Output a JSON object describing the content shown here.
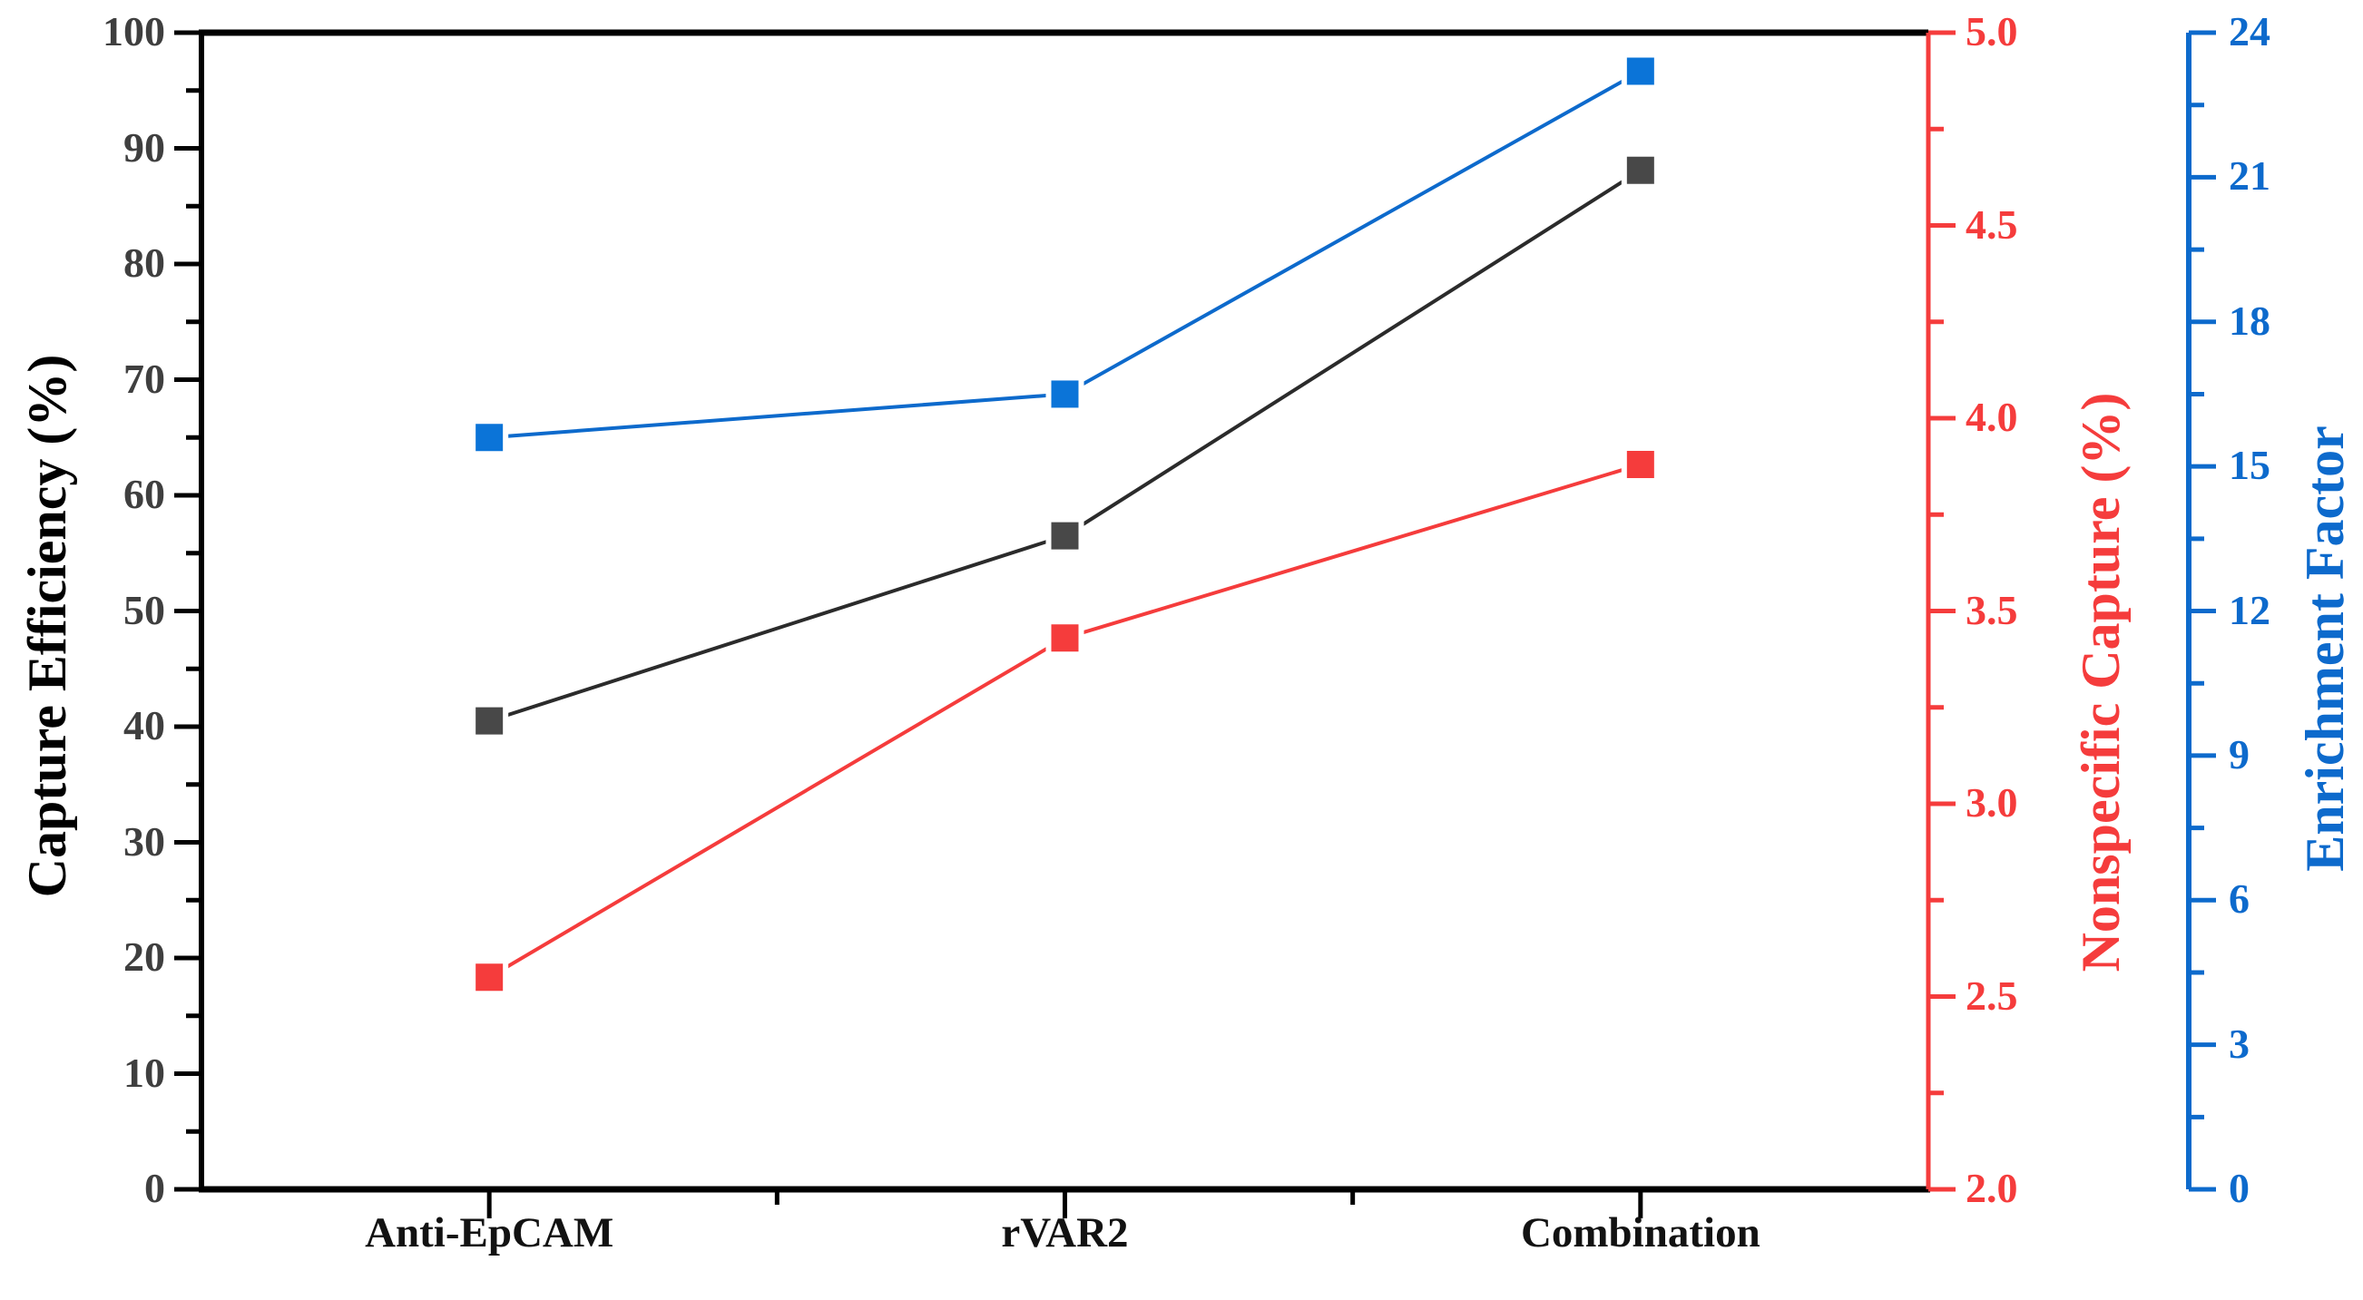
{
  "chart_data": {
    "type": "line",
    "categories": [
      "Anti-EpCAM",
      "rVAR2",
      "Combination"
    ],
    "series": [
      {
        "name": "Capture Efficiency",
        "axis": "left",
        "marker": "square",
        "line_color": "#2b2b2b",
        "marker_color": "#484848",
        "values": [
          40.5,
          56.5,
          88.1
        ]
      },
      {
        "name": "Nonspecific Capture",
        "axis": "right_red",
        "marker": "square",
        "line_color": "#f53c3c",
        "marker_color": "#f53c3c",
        "values": [
          2.55,
          3.43,
          3.88
        ]
      },
      {
        "name": "Enrichment Factor",
        "axis": "right_blue",
        "marker": "square",
        "line_color": "#0d6acc",
        "marker_color": "#0b74d8",
        "values": [
          15.6,
          16.5,
          23.2
        ]
      }
    ],
    "axes": {
      "x": {
        "tick_labels": [
          "Anti-EpCAM",
          "rVAR2",
          "Combination"
        ],
        "color": "#000000",
        "tick_label_color": "#121212"
      },
      "left": {
        "label": "Capture Efficiency (%)",
        "min": 0,
        "max": 100,
        "major_step": 10,
        "minor_step": 5,
        "color": "#000000",
        "tick_label_color": "#3f3f3f",
        "tick_labels": [
          "0",
          "10",
          "20",
          "30",
          "40",
          "50",
          "60",
          "70",
          "80",
          "90",
          "100"
        ]
      },
      "right_red": {
        "label": "Nonspecific Capture (%)",
        "min": 2.0,
        "max": 5.0,
        "major_step": 0.5,
        "minor_step": 0.25,
        "color": "#f53c3c",
        "tick_label_color": "#f53c3c",
        "tick_labels": [
          "2.0",
          "2.5",
          "3.0",
          "3.5",
          "4.0",
          "4.5",
          "5.0"
        ]
      },
      "right_blue": {
        "label": "Enrichment Factor",
        "min": 0,
        "max": 24,
        "major_step": 3,
        "minor_step": 1.5,
        "color": "#0d6acc",
        "tick_label_color": "#0d6acc",
        "tick_labels": [
          "0",
          "3",
          "6",
          "9",
          "12",
          "15",
          "18",
          "21",
          "24"
        ]
      }
    },
    "grid": false,
    "legend": false,
    "background": "#ffffff"
  }
}
